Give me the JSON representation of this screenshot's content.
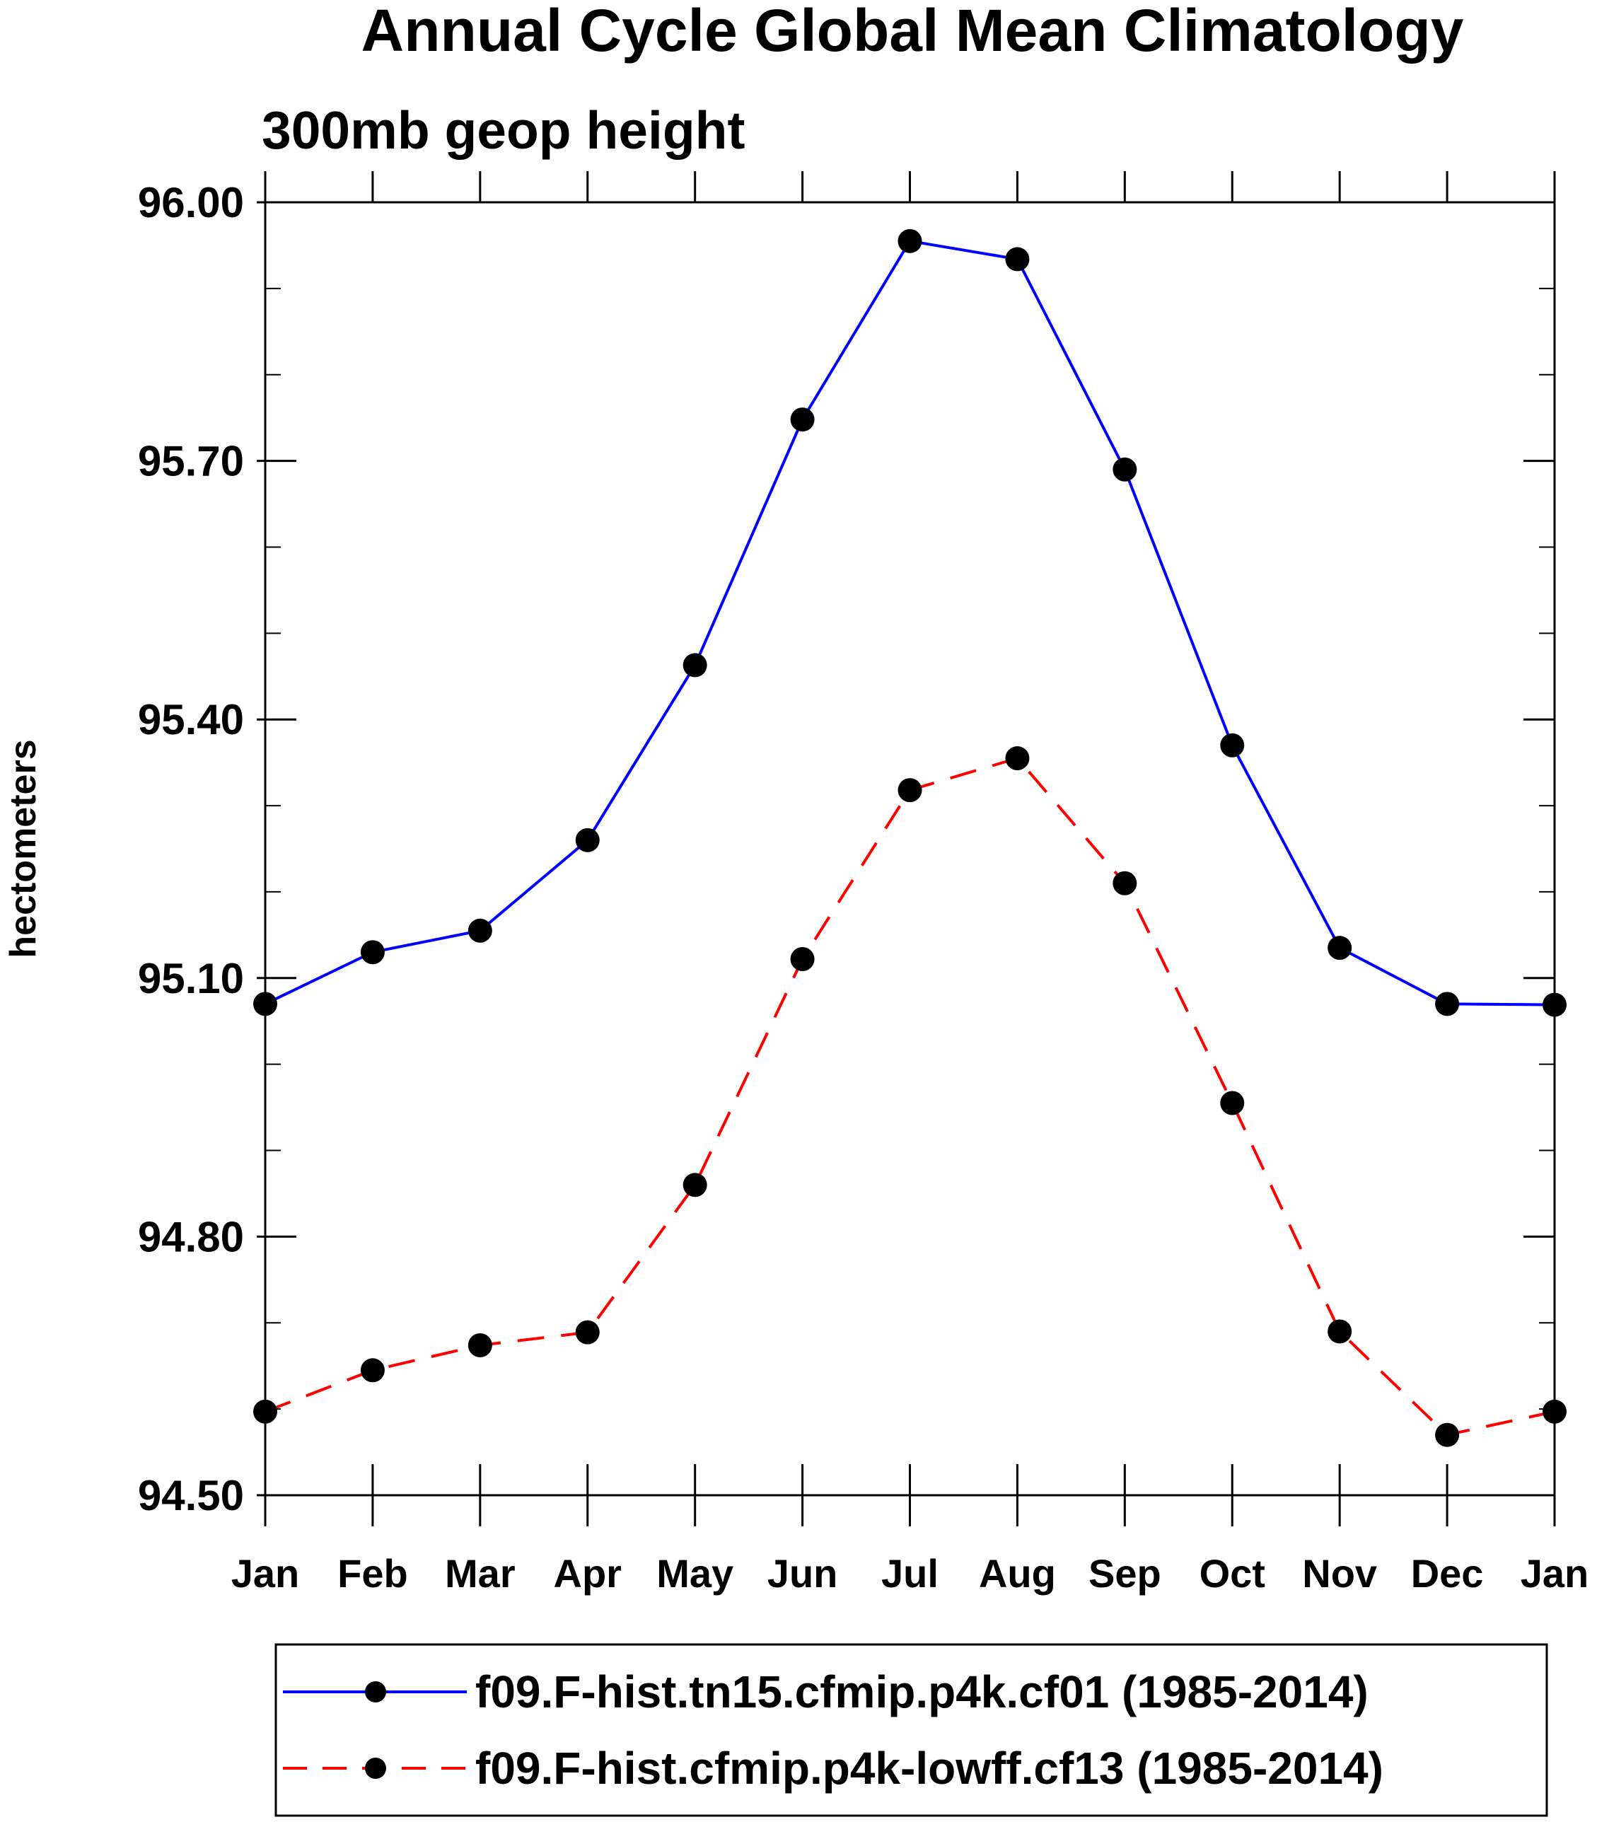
{
  "chart_data": {
    "type": "line",
    "title": "Annual Cycle Global Mean Climatology",
    "subtitle": "300mb geop height",
    "xlabel": "",
    "ylabel": "hectometers",
    "categories": [
      "Jan",
      "Feb",
      "Mar",
      "Apr",
      "May",
      "Jun",
      "Jul",
      "Aug",
      "Sep",
      "Oct",
      "Nov",
      "Dec",
      "Jan"
    ],
    "ylim": [
      94.5,
      96.0
    ],
    "yticks": [
      "96.00",
      "95.70",
      "95.40",
      "95.10",
      "94.80",
      "94.50"
    ],
    "ytick_values": [
      96.0,
      95.7,
      95.4,
      95.1,
      94.8,
      94.5
    ],
    "y_minor_step": 0.1,
    "grid": false,
    "legend_position": "bottom",
    "series": [
      {
        "name": "f09.F-hist.tn15.cfmip.p4k.cf01 (1985-2014)",
        "color": "#0000ff",
        "style": "solid",
        "marker": "filled-circle",
        "values": [
          95.07,
          95.13,
          95.155,
          95.26,
          95.463,
          95.748,
          95.955,
          95.934,
          95.69,
          95.37,
          95.135,
          95.07,
          95.069
        ]
      },
      {
        "name": "f09.F-hist.cfmip.p4k-lowff.cf13 (1985-2014)",
        "color": "#ff0000",
        "style": "dashed",
        "marker": "filled-circle",
        "values": [
          94.597,
          94.645,
          94.674,
          94.689,
          94.86,
          95.122,
          95.318,
          95.355,
          95.21,
          94.955,
          94.69,
          94.57,
          94.597
        ]
      }
    ]
  }
}
